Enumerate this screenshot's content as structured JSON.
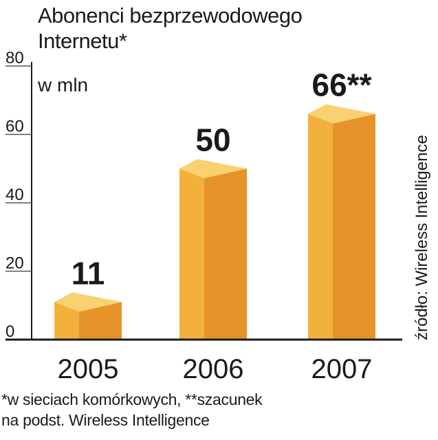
{
  "title_lines": [
    "Abonenci bezprzewodowego",
    "Internetu*"
  ],
  "unit_label": "w mln",
  "source": "źródło: Wireless Intelligence",
  "footnote_lines": [
    "*w sieciach komórkowych, **szacunek",
    "na podst. Wireless Intelligence"
  ],
  "colors": {
    "bar_front": "#f2b13c",
    "bar_side": "#e6932a",
    "bar_top": "#f9d171",
    "axis": "#1a1a1a",
    "grid": "#555555"
  },
  "chart_data": {
    "type": "bar",
    "title": "Abonenci bezprzewodowego Internetu*",
    "ylabel": "w mln",
    "categories": [
      "2005",
      "2006",
      "2007"
    ],
    "values": [
      11,
      50,
      66
    ],
    "data_labels": [
      "11",
      "50",
      "66**"
    ],
    "ylim": [
      0,
      80
    ],
    "yticks": [
      0,
      20,
      40,
      60,
      80
    ],
    "grid": false
  }
}
